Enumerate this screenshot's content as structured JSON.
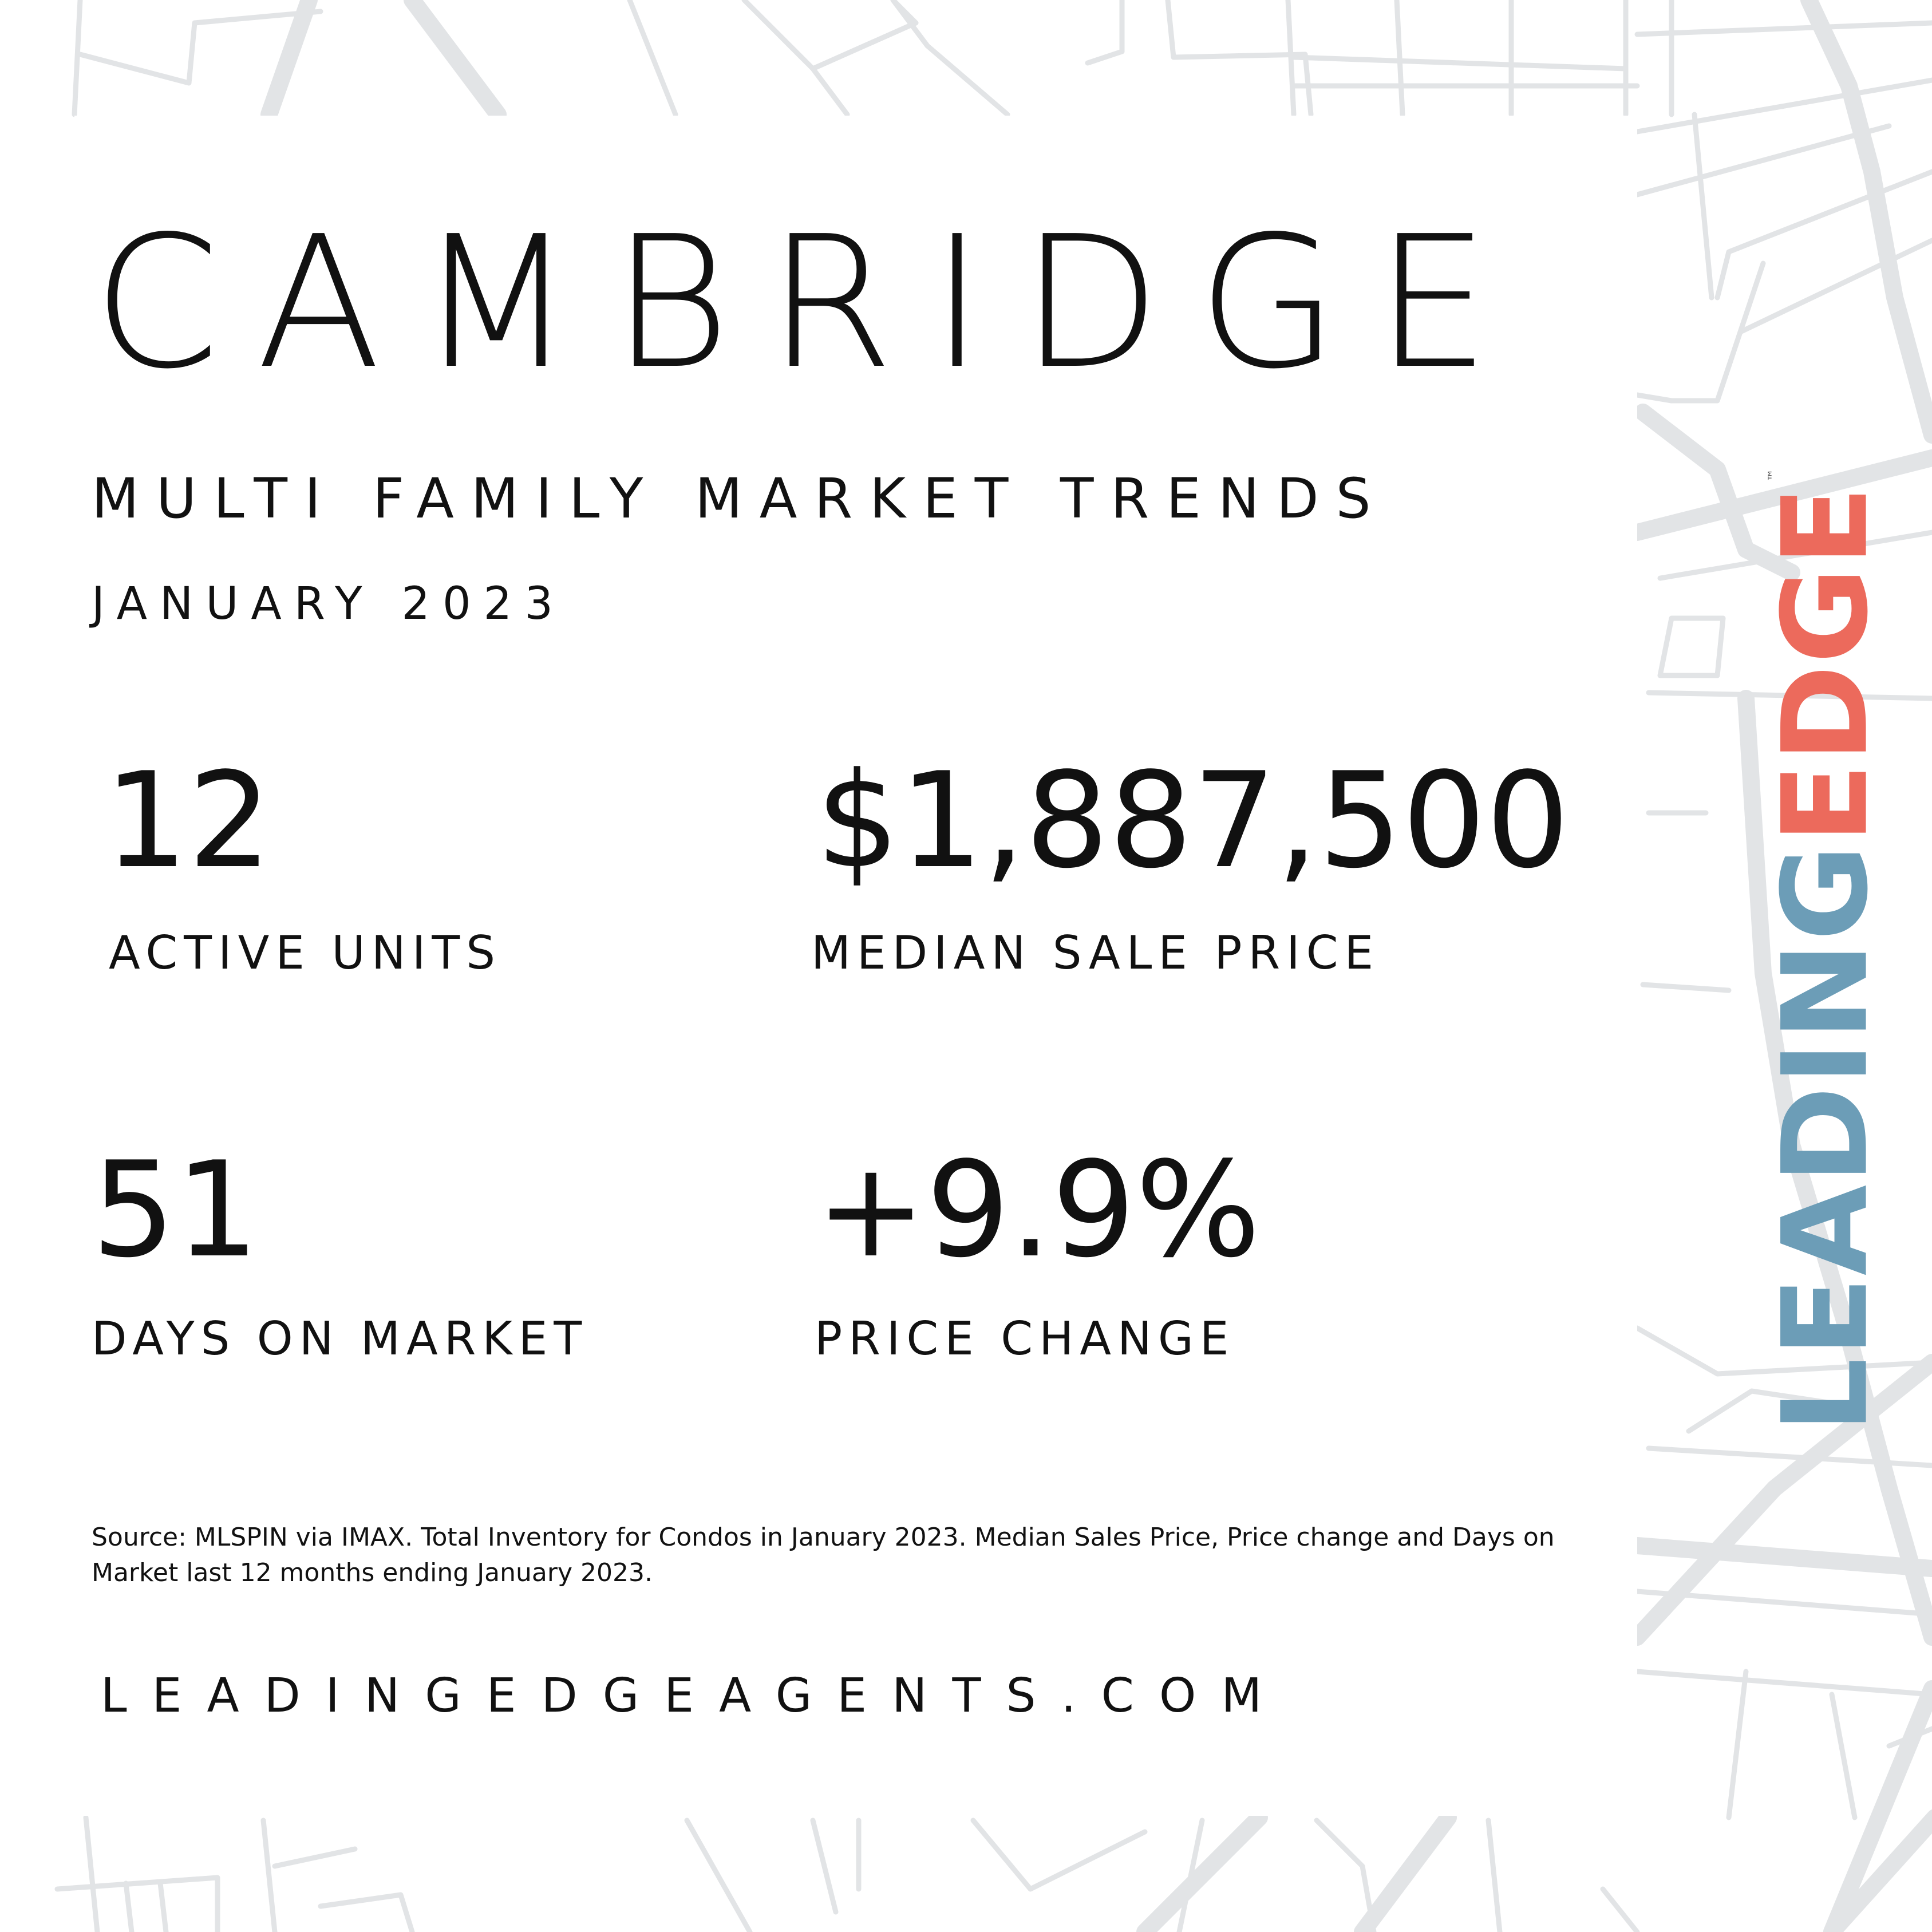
{
  "city": "CAMBRIDGE",
  "subtitle": "MULTI FAMILY MARKET TRENDS",
  "date": "JANUARY 2023",
  "stats": {
    "active_units": {
      "value": "12",
      "label": "ACTIVE UNITS"
    },
    "median_sale_price": {
      "value": "$1,887,500",
      "label": "MEDIAN SALE PRICE"
    },
    "days_on_market": {
      "value": "51",
      "label": "DAYS ON MARKET"
    },
    "price_change": {
      "value": "+9.9%",
      "label": "PRICE CHANGE"
    }
  },
  "source": "Source: MLSPIN via IMAX. Total Inventory for Condos in January 2023. Median Sales Price, Price change and Days on Market last 12 months ending January 2023.",
  "website": "LEADINGEDGEAGENTS.COM",
  "logo": {
    "part1": "LEADING",
    "part2": "EDGE",
    "tm": "™"
  },
  "colors": {
    "logo_blue": "#6c9db7",
    "logo_red": "#ec6a5c",
    "map_lines": "#dfe1e3",
    "text": "#111111"
  }
}
